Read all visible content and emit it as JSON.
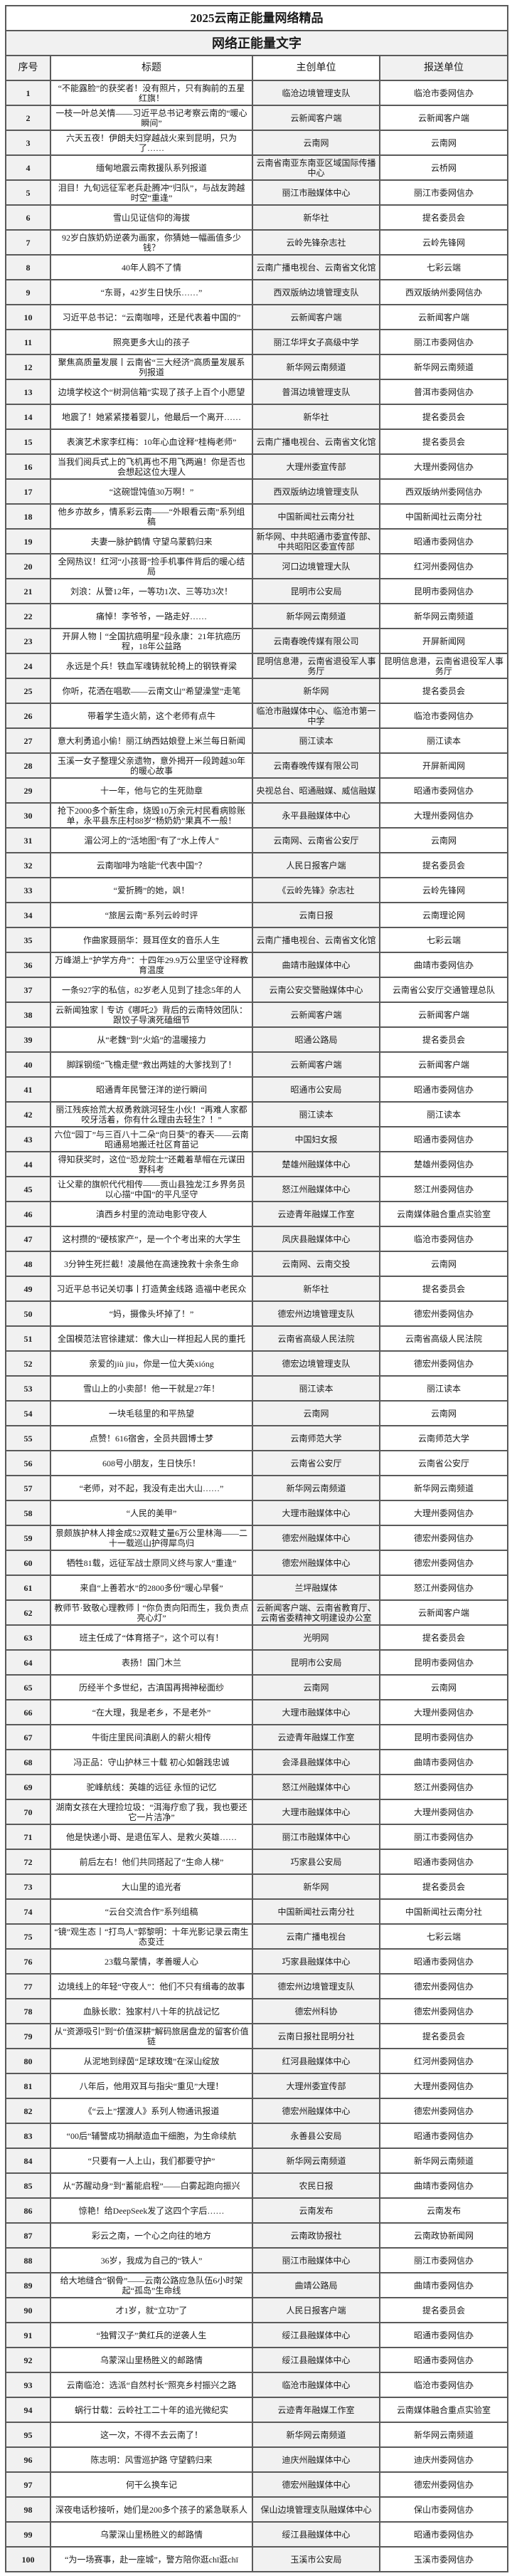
{
  "document": {
    "title": "2025云南正能量网络精品",
    "subtitle": "网络正能量文字",
    "columns": [
      "序号",
      "标题",
      "主创单位",
      "报送单位"
    ]
  },
  "rows": [
    [
      "1",
      "“不能露脸”的获奖者！没有照片，只有胸前的五星红旗！",
      "临沧边境管理支队",
      "临沧市委网信办"
    ],
    [
      "2",
      "一枝一叶总关情——习近平总书记考察云南的“暖心瞬间”",
      "云新闻客户端",
      "云新闻客户端"
    ],
    [
      "3",
      "六天五夜！伊朗夫妇穿越战火来到昆明，只为了……",
      "云南网",
      "云南网"
    ],
    [
      "4",
      "缅甸地震云南救援队系列报道",
      "云南省南亚东南亚区域国际传播中心",
      "云桥网"
    ],
    [
      "5",
      "泪目！九旬远征军老兵赴腾冲“归队”，与战友跨越时空“重逢”",
      "丽江市融媒体中心",
      "丽江市委网信办"
    ],
    [
      "6",
      "雪山见证信仰的海拔",
      "新华社",
      "提名委员会"
    ],
    [
      "7",
      "92岁白族奶奶逆袭为画家，你猜她一幅画值多少钱？",
      "云岭先锋杂志社",
      "云岭先锋网"
    ],
    [
      "8",
      "40年人鸥不了情",
      "云南广播电视台、云南省文化馆",
      "七彩云端"
    ],
    [
      "9",
      "“东哥，42岁生日快乐……”",
      "西双版纳边境管理支队",
      "西双版纳州委网信办"
    ],
    [
      "10",
      "习近平总书记：“云南咖啡，还是代表着中国的”",
      "云新闻客户端",
      "云新闻客户端"
    ],
    [
      "11",
      "照亮更多大山的孩子",
      "丽江华坪女子高级中学",
      "丽江市委网信办"
    ],
    [
      "12",
      "聚焦高质量发展丨云南省“三大经济”高质量发展系列报道",
      "新华网云南频道",
      "新华网云南频道"
    ],
    [
      "13",
      "边境学校这个“树洞信箱”实现了孩子上百个小愿望",
      "普洱边境管理支队",
      "普洱市委网信办"
    ],
    [
      "14",
      "地震了！她紧紧搂着婴儿，他最后一个离开……",
      "新华社",
      "提名委员会"
    ],
    [
      "15",
      "表演艺术家李红梅：10年心血诠释“桂梅老师”",
      "云南广播电视台、云南省文化馆",
      "提名委员会"
    ],
    [
      "16",
      "当我们阅兵式上的飞机再也不用飞两遍！你是否也会想起这位大理人",
      "大理州委宣传部",
      "大理州委网信办"
    ],
    [
      "17",
      "“这碗馄饨值30万啊！”",
      "西双版纳边境管理支队",
      "西双版纳州委网信办"
    ],
    [
      "18",
      "他乡亦故乡，情系彩云南——“外眼看云南”系列组稿",
      "中国新闻社云南分社",
      "中国新闻社云南分社"
    ],
    [
      "19",
      "夫妻一脉护鹤情 守望乌蒙鹤归来",
      "新华网、中共昭通市委宣传部、中共昭阳区委宣传部",
      "昭通市委网信办"
    ],
    [
      "20",
      "全网热议！红河“小孩哥”捡手机事件背后的暖心结局",
      "河口边境管理大队",
      "红河州委网信办"
    ],
    [
      "21",
      "刘浪：从警12年，一等功1次、三等功3次！",
      "昆明市公安局",
      "昆明市委网信办"
    ],
    [
      "22",
      "痛悼！李爷爷，一路走好……",
      "新华网云南频道",
      "新华网云南频道"
    ],
    [
      "23",
      "开屏人物丨“全国抗癌明星”段永康：21年抗癌历程，18年公益路",
      "云南春晚传媒有限公司",
      "开屏新闻网"
    ],
    [
      "24",
      "永远是个兵！铁血军魂铸就轮椅上的钢铁脊梁",
      "昆明信息港，云南省退役军人事务厅",
      "昆明信息港，云南省退役军人事务厅"
    ],
    [
      "25",
      "你听，花洒在唱歌——云南文山“希望澡堂”走笔",
      "新华网",
      "提名委员会"
    ],
    [
      "26",
      "带着学生造火箭，这个老师有点牛",
      "临沧市融媒体中心、临沧市第一中学",
      "临沧市委网信办"
    ],
    [
      "27",
      "意大利勇追小偷！丽江纳西姑娘登上米兰每日新闻",
      "丽江读本",
      "丽江读本"
    ],
    [
      "28",
      "玉溪一女子整理父亲遗物，意外揭开一段跨越30年的暖心故事",
      "云南春晚传媒有限公司",
      "开屏新闻网"
    ],
    [
      "29",
      "十一年，他与它的生死勋章",
      "央视总台、昭通融媒、威信融媒",
      "昭通市委网信办"
    ],
    [
      "30",
      "抢下2000多个新生命，烧毁10万余元村民看病赊账单，永平县东庄村88岁“杨奶奶”果真不一般！",
      "永平县融媒体中心",
      "大理州委网信办"
    ],
    [
      "31",
      "湄公河上的“活地图”有了“水上传人”",
      "云南网、云南省公安厅",
      "云南网"
    ],
    [
      "32",
      "云南咖啡为啥能“代表中国”？",
      "人民日报客户端",
      "提名委员会"
    ],
    [
      "33",
      "“爱折腾”的她，飒！",
      "《云岭先锋》杂志社",
      "云岭先锋网"
    ],
    [
      "34",
      "“旅居云南”系列云岭时评",
      "云南日报",
      "云南理论网"
    ],
    [
      "35",
      "作曲家聂丽华：聂耳侄女的音乐人生",
      "云南广播电视台、云南省文化馆",
      "七彩云端"
    ],
    [
      "36",
      "万峰湖上“护学方舟”：十四年29.9万公里坚守诠释教育温度",
      "曲靖市融媒体中心",
      "曲靖市委网信办"
    ],
    [
      "37",
      "一条927字的私信，82岁老人见到了挂念5年的人",
      "云南公安交警融媒体中心",
      "云南省公安厅交通管理总队"
    ],
    [
      "38",
      "云新闻独家丨专访《哪吒2》背后的云南特效团队：跟饺子导演死磕细节",
      "云新闻客户端",
      "云新闻客户端"
    ],
    [
      "39",
      "从“老魏”到“火焰”的温暖接力",
      "昭通公路局",
      "提名委员会"
    ],
    [
      "40",
      "脚踩钢缆“飞檐走壁”救出两娃的大爹找到了！",
      "云新闻客户端",
      "云新闻客户端"
    ],
    [
      "41",
      "昭通青年民警汪洋的逆行瞬间",
      "昭通市公安局",
      "昭通市委网信办"
    ],
    [
      "42",
      "丽江残疾拾荒大叔勇救跳河轻生小伙！“再难人家都咬牙活着，你有什么理由去轻生？！”",
      "丽江读本",
      "丽江读本"
    ],
    [
      "43",
      "六位“园丁”与三百八十二朵“向日葵”的春天——云南昭通易地搬迁社区育苗记",
      "中国妇女报",
      "昭通市委网信办"
    ],
    [
      "44",
      "得知获奖时，这位“恐龙院士”还戴着草帽在元谋田野科考",
      "楚雄州融媒体中心",
      "楚雄州委网信办"
    ],
    [
      "45",
      "让父辈的旗帜代代相传——贡山县独龙江乡界务员以心描“中国”的平凡坚守",
      "怒江州融媒体中心",
      "怒江州委网信办"
    ],
    [
      "46",
      "滇西乡村里的流动电影守夜人",
      "云迹青年融媒工作室",
      "云南媒体融合重点实验室"
    ],
    [
      "47",
      "这村攒的“硬核家产”，是一个个考出来的大学生",
      "凤庆县融媒体中心",
      "临沧市委网信办"
    ],
    [
      "48",
      "3分钟生死拦截！凌晨他在高速挽救十余条生命",
      "云南网、云南交投",
      "云南网"
    ],
    [
      "49",
      "习近平总书记关切事丨打造黄金线路 造福中老民众",
      "新华社",
      "提名委员会"
    ],
    [
      "50",
      "“妈，摄像头坏掉了！”",
      "德宏州边境管理支队",
      "德宏州委网信办"
    ],
    [
      "51",
      "全国模范法官徐建斌：像大山一样担起人民的重托",
      "云南省高级人民法院",
      "云南省高级人民法院"
    ],
    [
      "52",
      "亲爱的jiù jiu，你是一位大英xióng",
      "德宏边境管理支队",
      "德宏州委网信办"
    ],
    [
      "53",
      "雪山上的小卖部！他一干就是27年！",
      "丽江读本",
      "丽江读本"
    ],
    [
      "54",
      "一块毛毯里的和平热望",
      "云南网",
      "云南网"
    ],
    [
      "55",
      "点赞！616宿舍，全员共圆博士梦",
      "云南师范大学",
      "云南师范大学"
    ],
    [
      "56",
      "608号小朋友，生日快乐！",
      "云南省公安厅",
      "云南省公安厅"
    ],
    [
      "57",
      "“老师，对不起，我没有走出大山……”",
      "新华网云南频道",
      "新华网云南频道"
    ],
    [
      "58",
      "“人民的美甲”",
      "大理市融媒体中心",
      "大理州委网信办"
    ],
    [
      "59",
      "景颇族护林人排金成52双鞋丈量6万公里林海——二十一载巡山护得犀鸟归",
      "德宏州融媒体中心",
      "德宏州委网信办"
    ],
    [
      "60",
      "牺牲81载，远征军战士原同义终与家人“重逢”",
      "德宏州融媒体中心",
      "德宏州委网信办"
    ],
    [
      "61",
      "来自“上善若水”的2800多份“暖心早餐”",
      "兰坪融媒体",
      "怒江州委网信办"
    ],
    [
      "62",
      "教师节·致敬心理教师丨“你负责向阳而生，我负责点亮心灯”",
      "云新闻客户端、云南省教育厅、云南省委精神文明建设办公室",
      "云新闻客户端"
    ],
    [
      "63",
      "班主任成了“体育搭子”，这个可以有！",
      "光明网",
      "提名委员会"
    ],
    [
      "64",
      "表扬！国门木兰",
      "昆明市公安局",
      "昆明市委网信办"
    ],
    [
      "65",
      "历经半个多世纪，古滇国再揭神秘面纱",
      "云南网",
      "云南网"
    ],
    [
      "66",
      "“在大理，我是老乡，不是老外”",
      "大理市融媒体中心",
      "大理州委网信办"
    ],
    [
      "67",
      "牛街庄里民间滇剧人的薪火相传",
      "云迹青年融媒工作室",
      "昆明市委网信办"
    ],
    [
      "68",
      "冯正品：守山护林三十载 初心如磐践忠诚",
      "会泽县融媒体中心",
      "曲靖市委网信办"
    ],
    [
      "69",
      "驼峰航线：英雄的远征 永恒的记忆",
      "怒江州融媒体中心",
      "怒江州委网信办"
    ],
    [
      "70",
      "湖南女孩在大理捡垃圾：“洱海疗愈了我，我也要还它一片洁净”",
      "大理市融媒体中心",
      "大理州委网信办"
    ],
    [
      "71",
      "他是快递小哥、是退伍军人、是救火英雄……",
      "丽江市融媒体中心",
      "丽江市委网信办"
    ],
    [
      "72",
      "前后左右！他们共同搭起了“生命人梯”",
      "巧家县公安局",
      "昭通市委网信办"
    ],
    [
      "73",
      "大山里的追光者",
      "新华网",
      "提名委员会"
    ],
    [
      "74",
      "“云台交流合作”系列组稿",
      "中国新闻社云南分社",
      "中国新闻社云南分社"
    ],
    [
      "75",
      "“镜”观生态丨“打鸟人”郭黎明：十年光影记录云南生态变迁",
      "云南广播电视台",
      "七彩云端"
    ],
    [
      "76",
      "23载乌蒙情，孝善暖人心",
      "巧家县融媒体中心",
      "昭通市委网信办"
    ],
    [
      "77",
      "边境线上的年轻“守夜人”：他们不只有缉毒的故事",
      "德宏州边境管理支队",
      "德宏州委网信办"
    ],
    [
      "78",
      "血脉长歌：独家村八十年的抗战记忆",
      "德宏州科协",
      "德宏州委网信办"
    ],
    [
      "79",
      "从“资源吸引”到“价值深耕”解码旅居盘龙的留客价值链",
      "云南日报社昆明分社",
      "提名委员会"
    ],
    [
      "80",
      "从泥地到绿茵“足球玫瑰”在深山绽放",
      "红河县融媒体中心",
      "红河州委网信办"
    ],
    [
      "81",
      "八年后，他用双耳与指尖“重见”大理！",
      "大理州委宣传部",
      "大理州委网信办"
    ],
    [
      "82",
      "《“云上”摆渡人》系列人物通讯报道",
      "德宏州融媒体中心",
      "德宏州委网信办"
    ],
    [
      "83",
      "“00后”辅警成功捐献造血干细胞，为生命续航",
      "永善县公安局",
      "昭通市委网信办"
    ],
    [
      "84",
      "“只要有一人上山，我们都要守护”",
      "新华网云南频道",
      "新华网云南频道"
    ],
    [
      "85",
      "从“苏醒动身”到“蓄能启程”——白雾起跑向振兴",
      "农民日报",
      "曲靖市委网信办"
    ],
    [
      "86",
      "惊艳！给DeepSeek发了这四个字后……",
      "云南发布",
      "云南发布"
    ],
    [
      "87",
      "彩云之南，一个心之向往的地方",
      "云南政协报社",
      "云南政协新闻网"
    ],
    [
      "88",
      "36岁，我成为自己的“铁人”",
      "丽江市融媒体中心",
      "丽江市委网信办"
    ],
    [
      "89",
      "给大地缝合“钢骨”——云南公路应急队伍6小时架起“孤岛”生命线",
      "曲靖公路局",
      "曲靖市委网信办"
    ],
    [
      "90",
      "才1岁，就“立功”了",
      "人民日报客户端",
      "提名委员会"
    ],
    [
      "91",
      "“独臂汉子”黄红兵的逆袭人生",
      "绥江县融媒体中心",
      "昭通市委网信办"
    ],
    [
      "92",
      "乌蒙深山里杨胜义的邮路情",
      "绥江县融媒体中心",
      "昭通市委网信办"
    ],
    [
      "93",
      "云南临沧：选派“自然村长”照亮乡村振兴之路",
      "临沧市融媒体中心",
      "临沧市委网信办"
    ],
    [
      "94",
      "蜗行廿载：云岭社工二十年的追光微纪实",
      "云迹青年融媒工作室",
      "云南媒体融合重点实验室"
    ],
    [
      "95",
      "这一次，不得不去云南了！",
      "新华网云南频道",
      "新华网云南频道"
    ],
    [
      "96",
      "陈志明：风雪巡护路 守望鹤归来",
      "迪庆州融媒体中心",
      "迪庆州委网信办"
    ],
    [
      "97",
      "何干么换车记",
      "德宏州融媒体中心",
      "德宏州委网信办"
    ],
    [
      "98",
      "深夜电话秒接听，她们是200多个孩子的紧急联系人",
      "保山边境管理支队融媒体中心",
      "保山市委网信办"
    ],
    [
      "99",
      "乌蒙深山里杨胜义的邮路情",
      "绥江县融媒体中心",
      "昭通市委网信办"
    ],
    [
      "100",
      "“为一场赛事，赴一座城”，警方陪你逛chī逛chī",
      "玉溪市公安局",
      "玉溪市委网信办"
    ]
  ]
}
